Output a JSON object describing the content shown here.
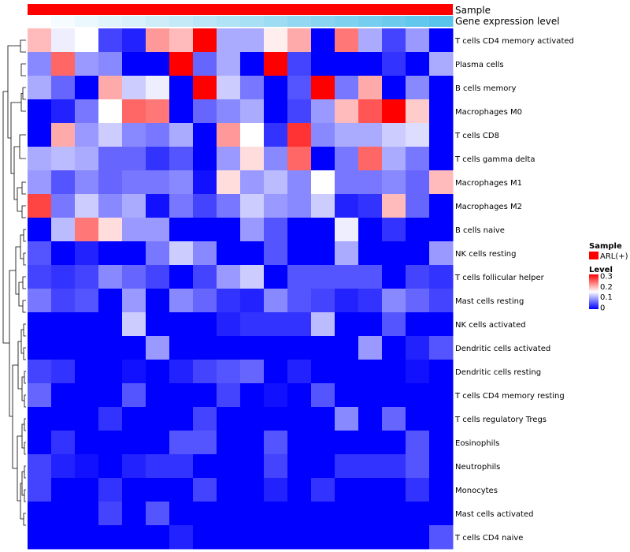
{
  "chart_data": {
    "type": "heatmap",
    "annotation_tracks": [
      {
        "name": "Sample",
        "color": "#ff0000"
      },
      {
        "name": "Gene expression level",
        "low_color": "#ffffff",
        "high_color": "#58c3eb"
      }
    ],
    "rows": [
      "T cells CD4 memory activated",
      "Plasma cells",
      "B cells memory",
      "Macrophages M0",
      "T cells CD8",
      "T cells gamma delta",
      "Macrophages M1",
      "Macrophages M2",
      "B cells naive",
      "NK cells resting",
      "T cells follicular helper",
      "Mast cells resting",
      "NK cells activated",
      "Dendritic cells activated",
      "Dendritic cells resting",
      "T cells CD4 memory resting",
      "T cells regulatory  Tregs",
      "Eosinophils",
      "Neutrophils",
      "Monocytes",
      "Mast cells activated",
      "T cells CD4 naive"
    ],
    "n_columns": 18,
    "values": [
      [
        0.19,
        0.14,
        0.15,
        0.04,
        0.02,
        0.21,
        0.19,
        0.3,
        0.1,
        0.1,
        0.16,
        0.2,
        0.0,
        0.23,
        0.1,
        0.04,
        0.09,
        0.0
      ],
      [
        0.08,
        0.24,
        0.09,
        0.08,
        0.0,
        0.0,
        0.3,
        0.06,
        0.1,
        0.0,
        0.3,
        0.04,
        0.0,
        0.0,
        0.0,
        0.03,
        0.0,
        0.1
      ],
      [
        0.1,
        0.06,
        0.0,
        0.2,
        0.12,
        0.14,
        0.0,
        0.3,
        0.12,
        0.07,
        0.0,
        0.05,
        0.3,
        0.07,
        0.2,
        0.0,
        0.08,
        0.0
      ],
      [
        0.0,
        0.02,
        0.07,
        0.15,
        0.24,
        0.23,
        0.0,
        0.06,
        0.08,
        0.1,
        0.0,
        0.04,
        0.09,
        0.19,
        0.25,
        0.3,
        0.18,
        0.0
      ],
      [
        0.0,
        0.2,
        0.09,
        0.12,
        0.08,
        0.07,
        0.1,
        0.0,
        0.21,
        0.15,
        0.03,
        0.27,
        0.08,
        0.1,
        0.1,
        0.12,
        0.13,
        0.0
      ],
      [
        0.1,
        0.11,
        0.1,
        0.06,
        0.06,
        0.03,
        0.05,
        0.0,
        0.09,
        0.17,
        0.08,
        0.24,
        0.0,
        0.07,
        0.24,
        0.1,
        0.07,
        0.0
      ],
      [
        0.09,
        0.05,
        0.08,
        0.06,
        0.07,
        0.07,
        0.08,
        0.01,
        0.17,
        0.09,
        0.11,
        0.08,
        0.15,
        0.07,
        0.07,
        0.08,
        0.06,
        0.19
      ],
      [
        0.26,
        0.07,
        0.12,
        0.08,
        0.1,
        0.01,
        0.07,
        0.04,
        0.07,
        0.12,
        0.09,
        0.08,
        0.12,
        0.02,
        0.03,
        0.19,
        0.06,
        0.0
      ],
      [
        0.0,
        0.11,
        0.23,
        0.17,
        0.09,
        0.09,
        0.0,
        0.0,
        0.0,
        0.09,
        0.05,
        0.0,
        0.0,
        0.14,
        0.0,
        0.03,
        0.0,
        0.0
      ],
      [
        0.05,
        0.0,
        0.02,
        0.0,
        0.0,
        0.07,
        0.12,
        0.08,
        0.0,
        0.0,
        0.05,
        0.0,
        0.0,
        0.1,
        0.0,
        0.0,
        0.0,
        0.09
      ],
      [
        0.04,
        0.03,
        0.04,
        0.08,
        0.06,
        0.04,
        0.0,
        0.04,
        0.09,
        0.12,
        0.0,
        0.05,
        0.05,
        0.05,
        0.05,
        0.0,
        0.04,
        0.03
      ],
      [
        0.07,
        0.04,
        0.05,
        0.0,
        0.09,
        0.0,
        0.08,
        0.06,
        0.03,
        0.02,
        0.08,
        0.05,
        0.04,
        0.02,
        0.03,
        0.08,
        0.06,
        0.04
      ],
      [
        0.0,
        0.0,
        0.0,
        0.0,
        0.12,
        0.0,
        0.0,
        0.0,
        0.02,
        0.03,
        0.03,
        0.03,
        0.11,
        0.0,
        0.0,
        0.05,
        0.0,
        0.0
      ],
      [
        0.0,
        0.0,
        0.0,
        0.0,
        0.0,
        0.09,
        0.0,
        0.0,
        0.0,
        0.0,
        0.0,
        0.0,
        0.0,
        0.0,
        0.09,
        0.0,
        0.02,
        0.05
      ],
      [
        0.04,
        0.03,
        0.0,
        0.0,
        0.01,
        0.0,
        0.02,
        0.04,
        0.05,
        0.06,
        0.0,
        0.02,
        0.0,
        0.0,
        0.0,
        0.0,
        0.01,
        0.0
      ],
      [
        0.06,
        0.0,
        0.0,
        0.0,
        0.05,
        0.0,
        0.0,
        0.0,
        0.04,
        0.0,
        0.01,
        0.0,
        0.05,
        0.0,
        0.0,
        0.0,
        0.0,
        0.0
      ],
      [
        0.0,
        0.0,
        0.0,
        0.03,
        0.0,
        0.0,
        0.0,
        0.04,
        0.0,
        0.0,
        0.0,
        0.0,
        0.0,
        0.08,
        0.0,
        0.06,
        0.0,
        0.0
      ],
      [
        0.0,
        0.03,
        0.0,
        0.0,
        0.0,
        0.0,
        0.05,
        0.05,
        0.0,
        0.0,
        0.05,
        0.0,
        0.0,
        0.0,
        0.0,
        0.0,
        0.05,
        0.0
      ],
      [
        0.04,
        0.02,
        0.01,
        0.0,
        0.02,
        0.03,
        0.03,
        0.0,
        0.0,
        0.0,
        0.04,
        0.0,
        0.0,
        0.03,
        0.03,
        0.03,
        0.05,
        0.0
      ],
      [
        0.04,
        0.0,
        0.0,
        0.03,
        0.0,
        0.0,
        0.0,
        0.04,
        0.0,
        0.0,
        0.02,
        0.0,
        0.03,
        0.0,
        0.0,
        0.0,
        0.03,
        0.0
      ],
      [
        0.0,
        0.0,
        0.0,
        0.04,
        0.0,
        0.05,
        0.0,
        0.0,
        0.0,
        0.0,
        0.0,
        0.0,
        0.0,
        0.0,
        0.0,
        0.0,
        0.0,
        0.0
      ],
      [
        0.0,
        0.0,
        0.0,
        0.0,
        0.0,
        0.0,
        0.02,
        0.0,
        0.0,
        0.0,
        0.0,
        0.0,
        0.0,
        0.0,
        0.0,
        0.0,
        0.0,
        0.05
      ]
    ],
    "color_scale": {
      "min": 0,
      "max": 0.3,
      "low": "#0000ff",
      "mid": "#ffffff",
      "high": "#ff0000",
      "midpoint": 0.15
    },
    "legend": {
      "sample_title": "Sample",
      "sample_entry": "ARL(+)",
      "sample_color": "#ff0000",
      "level_title": "Level",
      "level_ticks": [
        "0.3",
        "0.2",
        "0.1",
        "0"
      ],
      "position": "right"
    }
  }
}
